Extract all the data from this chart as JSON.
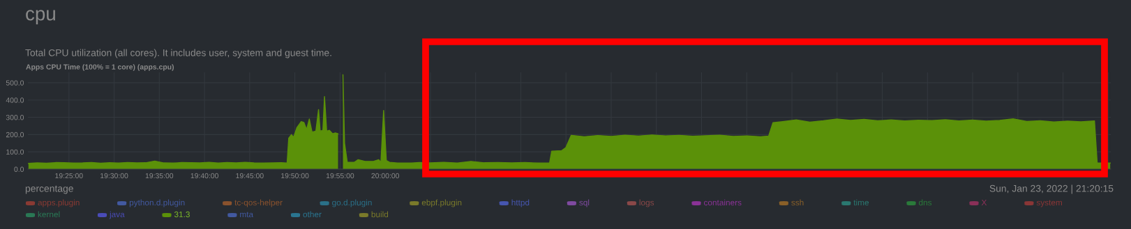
{
  "chart_data": {
    "type": "area",
    "title": "cpu",
    "subtitle": "Total CPU utilization (all cores). It includes user, system and guest time.",
    "annotations": [
      "Apps CPU Time (100% = 1 core) (apps.cpu)",
      "percentage",
      "Sun, Jan 23, 2022 | 21:20:15",
      "31.3"
    ],
    "xlim": [
      19.341,
      21.338
    ],
    "ylim": [
      0,
      560
    ],
    "xticks": [
      {
        "value": 19.4167,
        "label": "19:25:00"
      },
      {
        "value": 19.5,
        "label": "19:30:00"
      },
      {
        "value": 19.5833,
        "label": "19:35:00"
      },
      {
        "value": 19.6667,
        "label": "19:40:00"
      },
      {
        "value": 19.75,
        "label": "19:45:00"
      },
      {
        "value": 19.8333,
        "label": "19:50:00"
      },
      {
        "value": 19.9167,
        "label": "19:55:00"
      },
      {
        "value": 20.0,
        "label": "20:00:00"
      },
      {
        "value": 20.0833,
        "label": null
      },
      {
        "value": 20.1667,
        "label": null
      },
      {
        "value": 20.25,
        "label": null
      },
      {
        "value": 20.3333,
        "label": null
      },
      {
        "value": 20.4167,
        "label": null
      },
      {
        "value": 20.5,
        "label": null
      },
      {
        "value": 20.5833,
        "label": null
      },
      {
        "value": 20.6667,
        "label": null
      },
      {
        "value": 20.75,
        "label": null
      },
      {
        "value": 20.8333,
        "label": null
      },
      {
        "value": 20.9167,
        "label": null
      },
      {
        "value": 21.0,
        "label": null
      },
      {
        "value": 21.0833,
        "label": null
      },
      {
        "value": 21.1667,
        "label": null
      },
      {
        "value": 21.25,
        "label": null
      },
      {
        "value": 21.3333,
        "label": null
      }
    ],
    "yticks": [
      {
        "value": 0,
        "label": "0.0"
      },
      {
        "value": 100,
        "label": "100.0"
      },
      {
        "value": 200,
        "label": "200.0"
      },
      {
        "value": 300,
        "label": "300.0"
      },
      {
        "value": 400,
        "label": "400.0"
      },
      {
        "value": 500,
        "label": "500.0"
      }
    ],
    "grid": true,
    "legend": "bottom",
    "series": [
      {
        "name": "apps.plugin",
        "color": "#8a3a33"
      },
      {
        "name": "python.d.plugin",
        "color": "#4259a0"
      },
      {
        "name": "tc-qos-helper",
        "color": "#8a522d"
      },
      {
        "name": "go.d.plugin",
        "color": "#2a7088"
      },
      {
        "name": "ebpf.plugin",
        "color": "#7a7a2a"
      },
      {
        "name": "httpd",
        "color": "#4656b0"
      },
      {
        "name": "sql",
        "color": "#7f4aa0"
      },
      {
        "name": "logs",
        "color": "#8a4848"
      },
      {
        "name": "containers",
        "color": "#8a3296"
      },
      {
        "name": "ssh",
        "color": "#8a6028"
      },
      {
        "name": "time",
        "color": "#2a7870"
      },
      {
        "name": "dns",
        "color": "#2a7a3a"
      },
      {
        "name": "X",
        "color": "#8a3058"
      },
      {
        "name": "system",
        "color": "#8a3636"
      },
      {
        "name": "kernel",
        "color": "#2a7855"
      },
      {
        "name": "java",
        "color": "#4a4cb8"
      },
      {
        "color": "#5b9109",
        "x": [
          19.342,
          19.358,
          19.375,
          19.392,
          19.408,
          19.425,
          19.442,
          19.458,
          19.475,
          19.492,
          19.508,
          19.525,
          19.542,
          19.558,
          19.575,
          19.592,
          19.608,
          19.625,
          19.642,
          19.658,
          19.675,
          19.692,
          19.708,
          19.725,
          19.742,
          19.758,
          19.775,
          19.792,
          19.808,
          19.819,
          19.822,
          19.827,
          19.831,
          19.837,
          19.845,
          19.85,
          19.855,
          19.86,
          19.865,
          19.872,
          19.877,
          19.88,
          19.885,
          19.888,
          19.892,
          19.897,
          19.903,
          19.908,
          19.913,
          19.917,
          19.922,
          19.925,
          19.93,
          19.943,
          19.95,
          19.963,
          19.978,
          19.988,
          19.992,
          19.997,
          20.002,
          20.008,
          20.023,
          20.048,
          20.063,
          20.083,
          20.108,
          20.133,
          20.158,
          20.183,
          20.208,
          20.233,
          20.258,
          20.283,
          20.303,
          20.307,
          20.325,
          20.333,
          20.343,
          20.367,
          20.392,
          20.417,
          20.442,
          20.467,
          20.492,
          20.517,
          20.542,
          20.567,
          20.592,
          20.617,
          20.642,
          20.667,
          20.692,
          20.707,
          20.715,
          20.733,
          20.758,
          20.783,
          20.808,
          20.833,
          20.858,
          20.883,
          20.908,
          20.933,
          20.958,
          20.983,
          21.008,
          21.033,
          21.058,
          21.083,
          21.108,
          21.133,
          21.158,
          21.183,
          21.208,
          21.233,
          21.258,
          21.283,
          21.308,
          21.313,
          21.337
        ],
        "values": [
          33,
          36,
          34,
          38,
          37,
          35,
          36,
          39,
          34,
          37,
          35,
          38,
          36,
          37,
          47,
          36,
          35,
          38,
          37,
          36,
          40,
          35,
          38,
          36,
          40,
          36,
          35,
          36,
          37,
          35,
          180,
          200,
          185,
          240,
          275,
          270,
          230,
          290,
          215,
          220,
          345,
          220,
          225,
          420,
          220,
          225,
          205,
          210,
          205,
          null,
          546,
          150,
          40,
          40,
          55,
          45,
          45,
          55,
          40,
          340,
          50,
          40,
          35,
          35,
          38,
          36,
          40,
          35,
          45,
          37,
          39,
          36,
          38,
          35,
          36,
          104,
          107,
          125,
          196,
          188,
          195,
          190,
          197,
          192,
          198,
          193,
          196,
          191,
          194,
          197,
          190,
          193,
          188,
          192,
          269,
          275,
          285,
          272,
          280,
          290,
          282,
          288,
          280,
          285,
          279,
          283,
          281,
          286,
          279,
          284,
          278,
          282,
          291,
          276,
          280,
          273,
          278,
          274,
          279,
          35,
          35
        ]
      },
      {
        "name": "mta",
        "color": "#4259a0"
      },
      {
        "name": "other",
        "color": "#2a7590"
      },
      {
        "name": "build",
        "color": "#7a7a2a"
      }
    ]
  }
}
